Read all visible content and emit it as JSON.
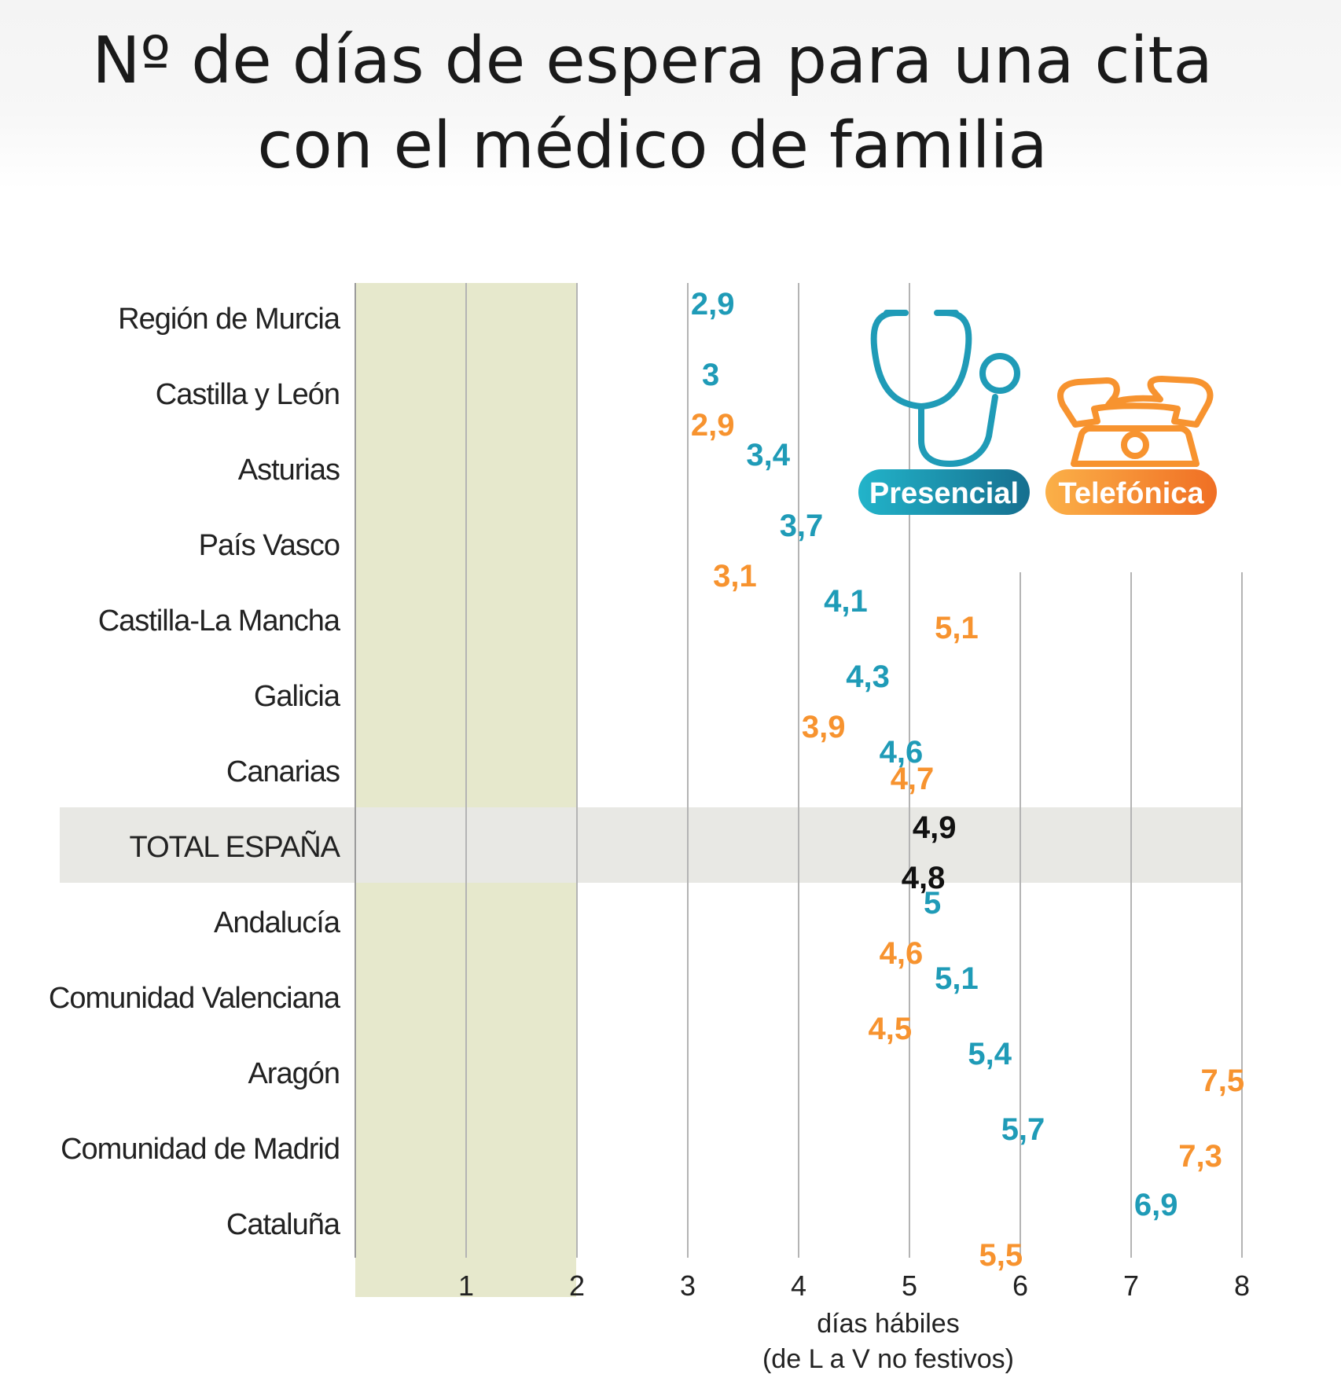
{
  "title": {
    "line1": "Nº de días de espera para una cita",
    "line2": "con el médico de familia"
  },
  "chart_data": {
    "type": "bar",
    "orientation": "horizontal",
    "title": "Nº de días de espera para una cita con el médico de familia",
    "xlabel": "días hábiles",
    "xlabel_note": "(de L a V no festivos)",
    "xlim": [
      0,
      8
    ],
    "xticks": [
      "1",
      "2",
      "3",
      "4",
      "5",
      "6",
      "7",
      "8"
    ],
    "highlight_range": [
      0,
      2
    ],
    "highlighted_category": "TOTAL ESPAÑA",
    "categories": [
      "Región de Murcia",
      "Castilla y León",
      "Asturias",
      "País Vasco",
      "Castilla-La Mancha",
      "Galicia",
      "Canarias",
      "TOTAL ESPAÑA",
      "Andalucía",
      "Comunidad Valenciana",
      "Aragón",
      "Comunidad de Madrid",
      "Cataluña"
    ],
    "series": [
      {
        "name": "Presencial",
        "color": "#1f9bb7",
        "values": [
          2.9,
          3,
          3.4,
          3.7,
          4.1,
          4.3,
          4.6,
          4.9,
          5,
          5.1,
          5.4,
          5.7,
          6.9
        ],
        "labels": [
          "2,9",
          "3",
          "3,4",
          "3,7",
          "4,1",
          "4,3",
          "4,6",
          "4,9",
          "5",
          "5,1",
          "5,4",
          "5,7",
          "6,9"
        ]
      },
      {
        "name": "Telefónica",
        "color": "#f7932f",
        "values": [
          null,
          2.9,
          null,
          3.1,
          5.1,
          3.9,
          4.7,
          4.8,
          4.6,
          4.5,
          7.5,
          7.3,
          5.5
        ],
        "labels": [
          null,
          "2,9",
          null,
          "3,1",
          "5,1",
          "3,9",
          "4,7",
          "4,8",
          "4,6",
          "4,5",
          "7,5",
          "7,3",
          "5,5"
        ]
      }
    ],
    "legend": {
      "position": "top-right",
      "items": [
        {
          "label": "Presencial",
          "icon": "stethoscope-icon",
          "color": "#1f9bb7"
        },
        {
          "label": "Telefónica",
          "icon": "telephone-icon",
          "color": "#f7932f"
        }
      ]
    },
    "colors": {
      "total_label": "#111111",
      "highlight_zone": "#e6e8cc",
      "total_band": "#e8e8e4"
    }
  }
}
